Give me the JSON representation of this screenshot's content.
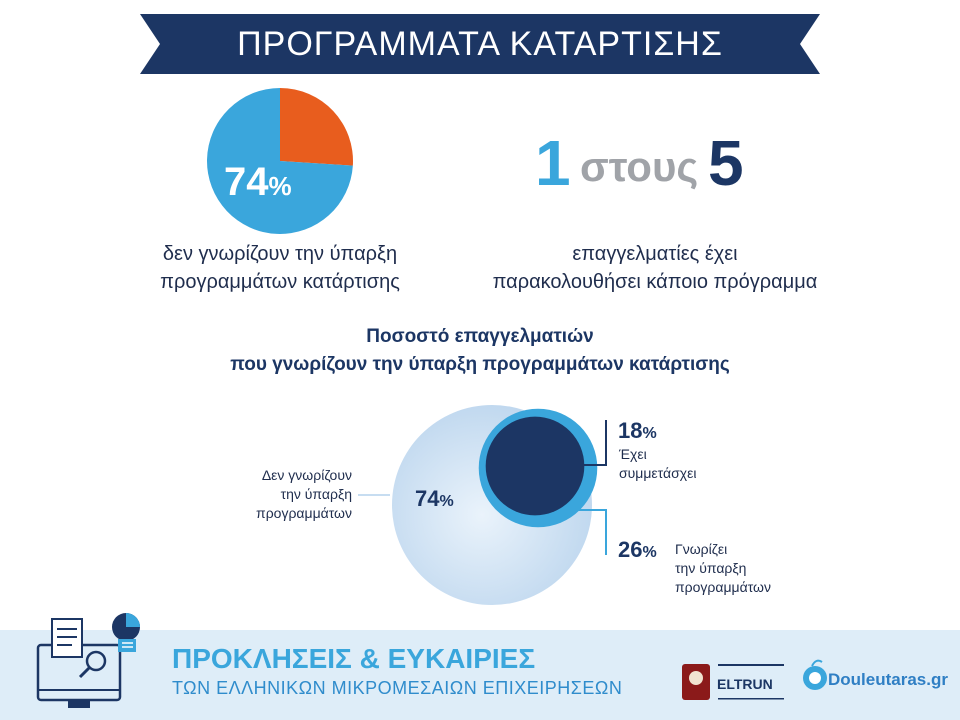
{
  "header": {
    "title": "ΠΡΟΓΡΑΜΜΑΤΑ ΚΑΤΑΡΤΙΣΗΣ"
  },
  "colors": {
    "navy": "#1c3664",
    "blue": "#3aa6dc",
    "orange": "#e85d1e",
    "light_blue": "#c7ddf1",
    "grey": "#a0a3a8"
  },
  "chart_data": [
    {
      "type": "pie",
      "values": [
        74,
        26
      ],
      "value_label": "74",
      "unit": "%",
      "caption_lines": [
        "δεν γνωρίζουν την ύπαρξη",
        "προγραμμάτων κατάρτισης"
      ]
    },
    {
      "type": "bubble",
      "title_lines": [
        "Ποσοστό επαγγελματιών",
        "που γνωρίζουν την ύπαρξη προγραμμάτων κατάρτισης"
      ],
      "items": [
        {
          "value": 74,
          "unit": "%",
          "label_lines": [
            "Δεν γνωρίζουν",
            "την ύπαρξη",
            "προγραμμάτων"
          ]
        },
        {
          "value": 26,
          "unit": "%",
          "label_lines": [
            "Γνωρίζει",
            "την ύπαρξη",
            "προγραμμάτων"
          ]
        },
        {
          "value": 18,
          "unit": "%",
          "label_lines": [
            "Έχει",
            "συμμετάσχει"
          ]
        }
      ]
    }
  ],
  "stat": {
    "numerator": "1",
    "word": "στους",
    "denominator": "5",
    "caption_lines": [
      "επαγγελματίες έχει",
      "παρακολουθήσει κάποιο πρόγραμμα"
    ]
  },
  "footer": {
    "title": "ΠΡΟΚΛΗΣΕΙΣ & ΕΥΚΑΙΡΙΕΣ",
    "subtitle": "ΤΩΝ ΕΛΛΗΝΙΚΩΝ ΜΙΚΡΟΜΕΣΑΙΩΝ ΕΠΙΧΕΙΡΗΣΕΩΝ",
    "logo1": "ELTRUN",
    "logo2": "Douleutaras.gr"
  }
}
